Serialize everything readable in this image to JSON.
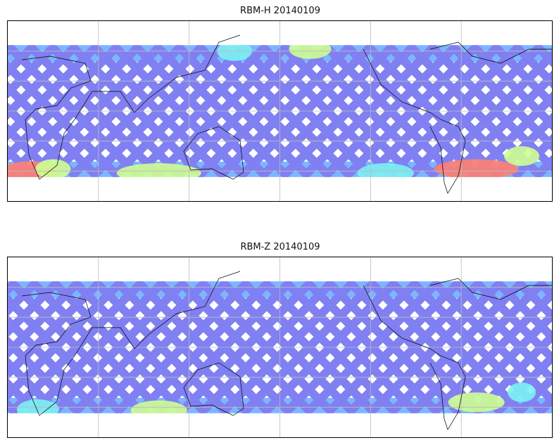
{
  "chart_data": [
    {
      "type": "heatmap",
      "title": "RBM-H 20140109",
      "projection": "PlateCarree",
      "lon_range": [
        0,
        360
      ],
      "lat_range": [
        -90,
        90
      ],
      "grid": true,
      "colormap": "jet (semi-transparent)",
      "coverage_lat": [
        -66,
        66
      ],
      "high_value_regions": [
        "southern ocean south of Africa",
        "southern ocean south of Australia",
        "South Atlantic east of South America",
        "North Pacific near 60N"
      ]
    },
    {
      "type": "heatmap",
      "title": "RBM-Z 20140109",
      "projection": "PlateCarree",
      "lon_range": [
        0,
        360
      ],
      "lat_range": [
        -90,
        90
      ],
      "grid": true,
      "colormap": "jet (semi-transparent)",
      "coverage_lat": [
        -66,
        66
      ],
      "high_value_regions": [
        "southern ocean south of Australia",
        "South Atlantic east of South America"
      ]
    }
  ],
  "colors": {
    "low": "#6a6af0",
    "mid_low": "#66aaff",
    "mid": "#66f0f0",
    "mid_high": "#c8ff80",
    "high": "#ff6a5a"
  }
}
